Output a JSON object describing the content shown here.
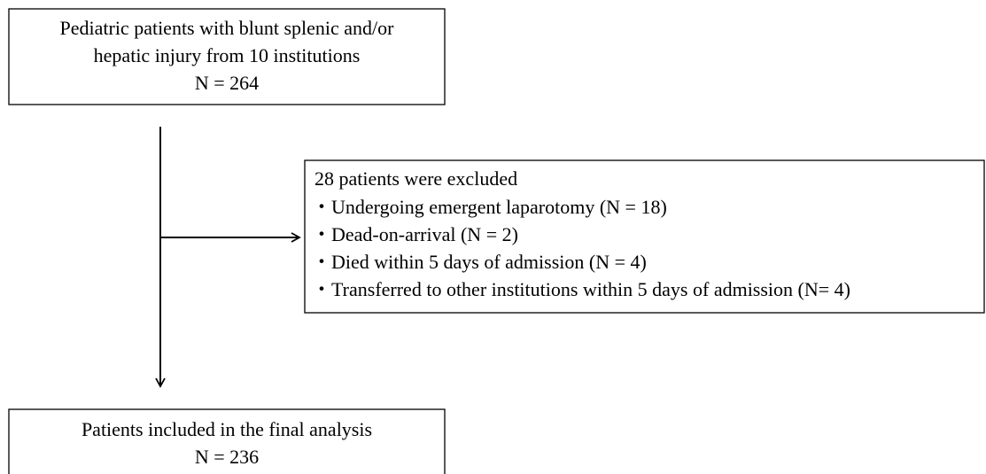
{
  "top_box": {
    "lines": [
      "Pediatric patients with blunt splenic and/or",
      "hepatic injury from 10 institutions",
      "N = 264"
    ]
  },
  "exclusion_box": {
    "title": "28 patients were excluded",
    "items": [
      "・Undergoing emergent laparotomy (N = 18)",
      "・Dead-on-arrival (N = 2)",
      "・Died within 5 days of admission (N = 4)",
      "・Transferred to other institutions within 5 days of admission (N= 4)"
    ]
  },
  "bottom_box": {
    "lines": [
      "Patients included in the final analysis",
      "N = 236"
    ]
  }
}
